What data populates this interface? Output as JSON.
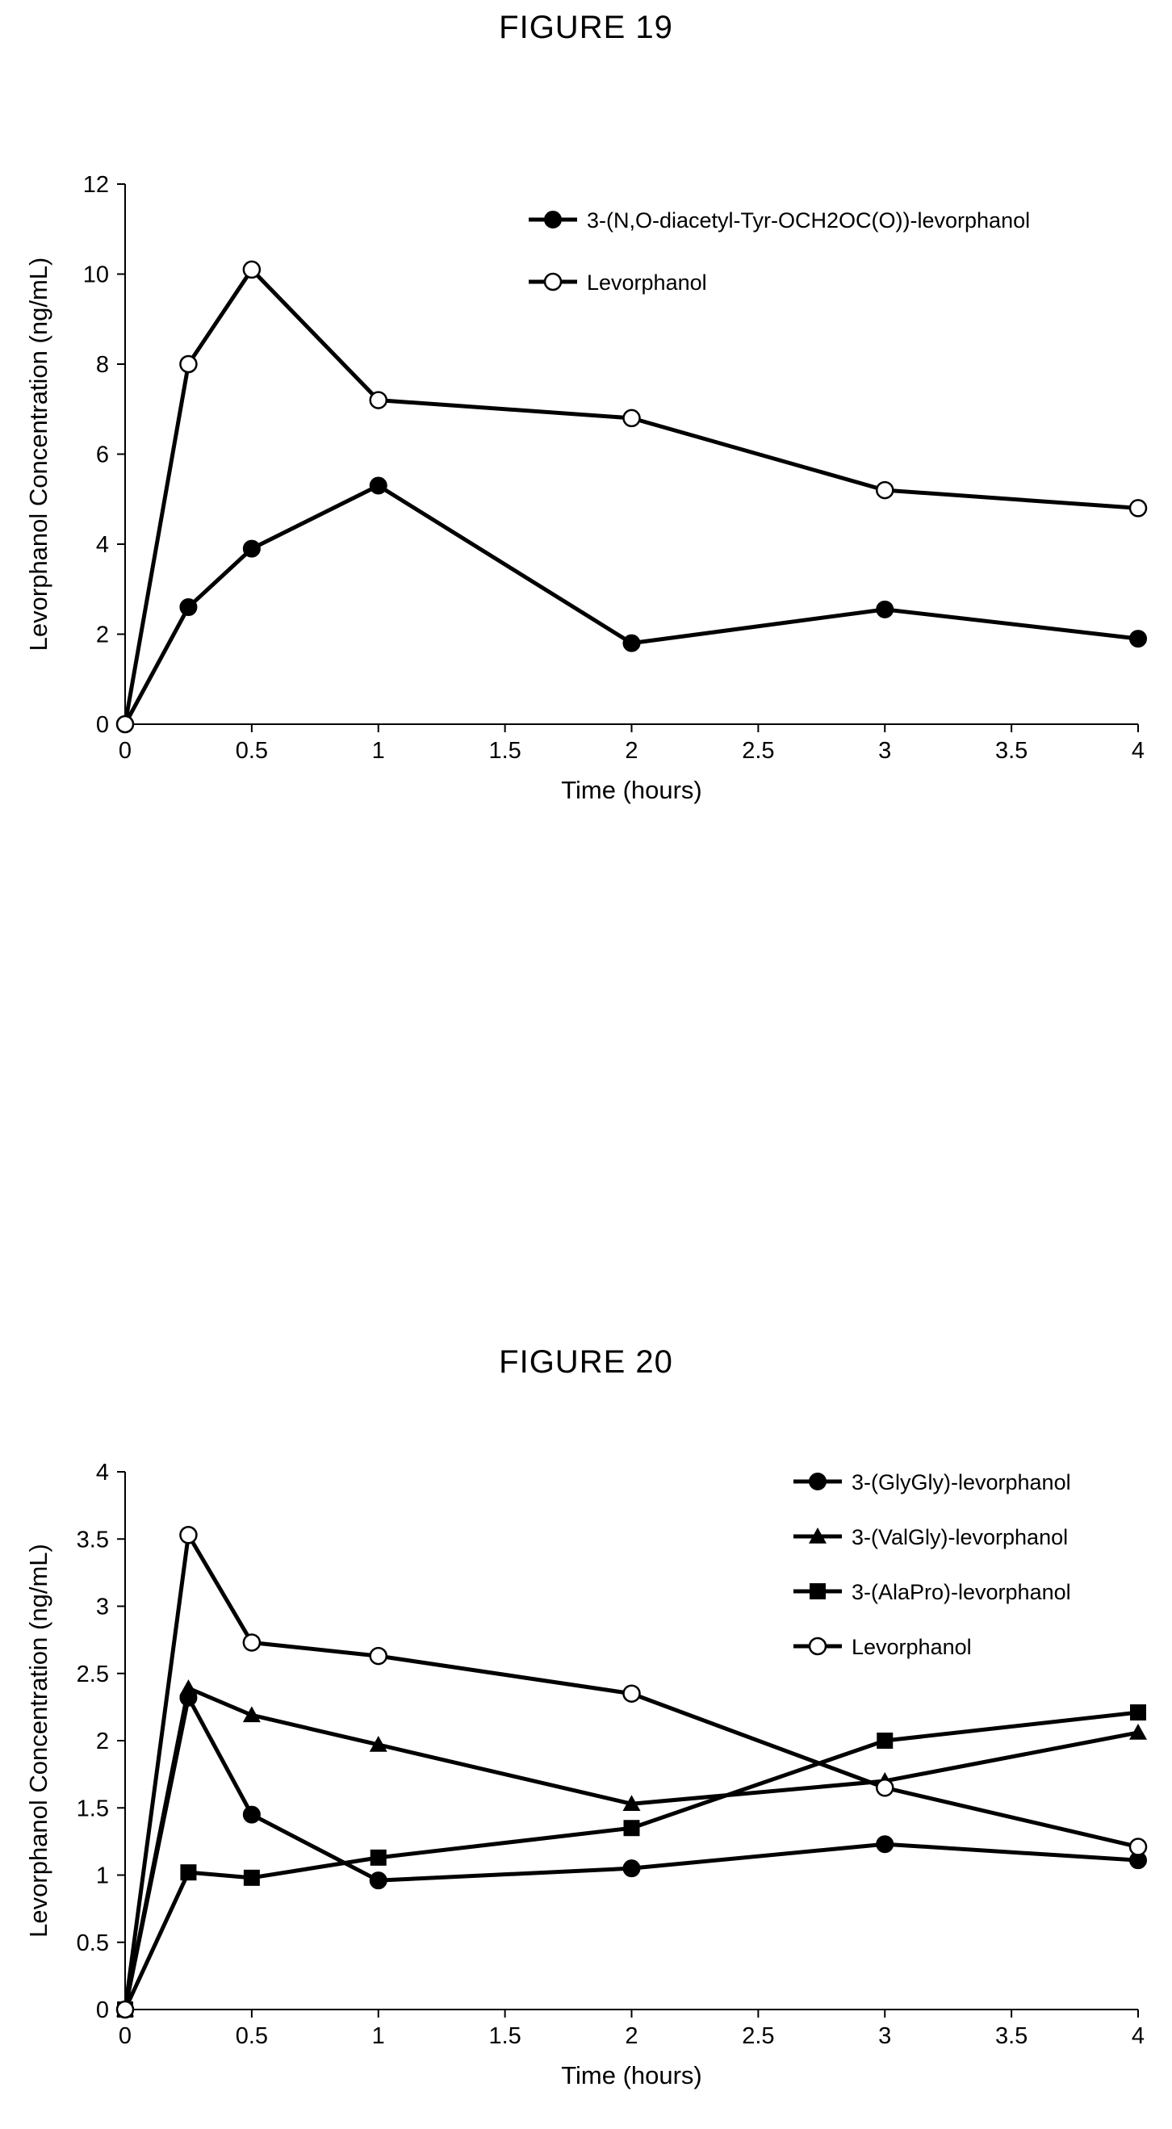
{
  "chart_data": [
    {
      "type": "line",
      "title": "FIGURE 19",
      "xlabel": "Time (hours)",
      "ylabel": "Levorphanol Concentration (ng/mL)",
      "xlim": [
        0,
        4
      ],
      "ylim": [
        0,
        12
      ],
      "xticks": [
        0,
        0.5,
        1,
        1.5,
        2,
        2.5,
        3,
        3.5,
        4
      ],
      "yticks": [
        0,
        2,
        4,
        6,
        8,
        10,
        12
      ],
      "grid": false,
      "legend_position": "top-right",
      "series": [
        {
          "name": "3-(N,O-diacetyl-Tyr-OCH2OC(O))-levorphanol",
          "marker": "filled-circle",
          "color": "#000000",
          "x": [
            0,
            0.25,
            0.5,
            1,
            2,
            3,
            4
          ],
          "y": [
            0,
            2.6,
            3.9,
            5.3,
            1.8,
            2.55,
            1.9
          ]
        },
        {
          "name": "Levorphanol",
          "marker": "open-circle",
          "color": "#000000",
          "x": [
            0,
            0.25,
            0.5,
            1,
            2,
            3,
            4
          ],
          "y": [
            0,
            8.0,
            10.1,
            7.2,
            6.8,
            5.2,
            4.8
          ]
        }
      ]
    },
    {
      "type": "line",
      "title": "FIGURE 20",
      "xlabel": "Time (hours)",
      "ylabel": "Levorphanol Concentration (ng/mL)",
      "xlim": [
        0,
        4
      ],
      "ylim": [
        0,
        4
      ],
      "xticks": [
        0,
        0.5,
        1,
        1.5,
        2,
        2.5,
        3,
        3.5,
        4
      ],
      "yticks": [
        0,
        0.5,
        1,
        1.5,
        2,
        2.5,
        3,
        3.5,
        4
      ],
      "grid": false,
      "legend_position": "top-right",
      "series": [
        {
          "name": "3-(GlyGly)-levorphanol",
          "marker": "filled-circle",
          "color": "#000000",
          "x": [
            0,
            0.25,
            0.5,
            1,
            2,
            3,
            4
          ],
          "y": [
            0,
            2.32,
            1.45,
            0.96,
            1.05,
            1.23,
            1.11
          ]
        },
        {
          "name": "3-(ValGly)-levorphanol",
          "marker": "filled-triangle",
          "color": "#000000",
          "x": [
            0,
            0.25,
            0.5,
            1,
            2,
            3,
            4
          ],
          "y": [
            0,
            2.39,
            2.19,
            1.97,
            1.53,
            1.7,
            2.06
          ]
        },
        {
          "name": "3-(AlaPro)-levorphanol",
          "marker": "filled-square",
          "color": "#000000",
          "x": [
            0,
            0.25,
            0.5,
            1,
            2,
            3,
            4
          ],
          "y": [
            0,
            1.02,
            0.98,
            1.13,
            1.35,
            2.0,
            2.21
          ]
        },
        {
          "name": "Levorphanol",
          "marker": "open-circle",
          "color": "#000000",
          "x": [
            0,
            0.25,
            0.5,
            1,
            2,
            3,
            4
          ],
          "y": [
            0,
            3.53,
            2.73,
            2.63,
            2.35,
            1.65,
            1.21
          ]
        }
      ]
    }
  ]
}
